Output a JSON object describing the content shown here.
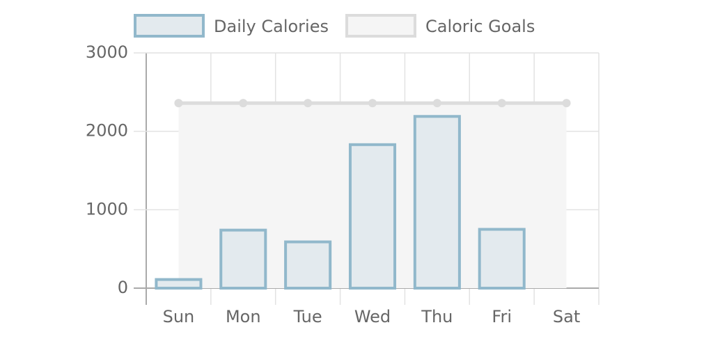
{
  "chart_data": {
    "type": "bar",
    "categories": [
      "Sun",
      "Mon",
      "Tue",
      "Wed",
      "Thu",
      "Fri",
      "Sat"
    ],
    "series": [
      {
        "name": "Daily Calories",
        "type": "bar",
        "color": "#91b8cb",
        "fill": "#e3eaee",
        "values": [
          110,
          740,
          590,
          1830,
          2190,
          750,
          null
        ]
      },
      {
        "name": "Caloric Goals",
        "type": "line",
        "color": "#dcdcdc",
        "fill": "#f5f5f5",
        "values": [
          2360,
          2360,
          2360,
          2360,
          2360,
          2360,
          2360
        ]
      }
    ],
    "ylim": [
      0,
      3000
    ],
    "yticks": [
      0,
      1000,
      2000,
      3000
    ],
    "grid": true
  }
}
